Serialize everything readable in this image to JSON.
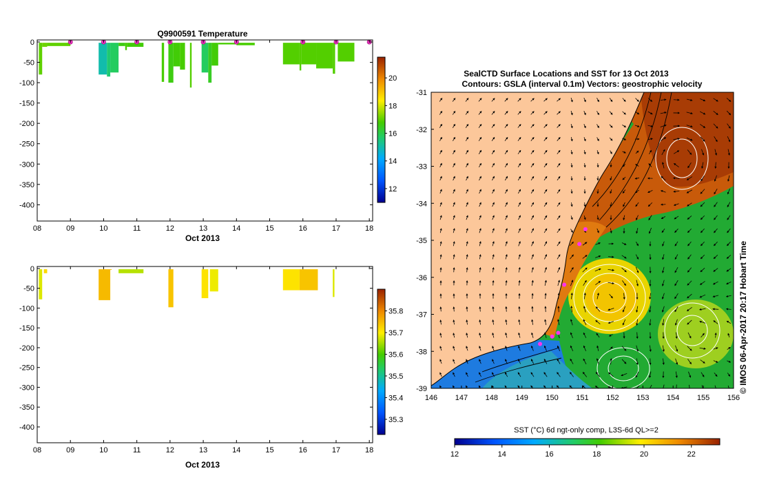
{
  "chart_data": [
    {
      "type": "heatmap",
      "title": "Q9900591  Temperature",
      "xlabel": "Oct 2013",
      "ylabel": "",
      "x_ticks": [
        "08",
        "09",
        "10",
        "11",
        "12",
        "13",
        "14",
        "15",
        "16",
        "17",
        "18"
      ],
      "xlim": [
        8,
        18.1
      ],
      "y_ticks": [
        0,
        -50,
        -100,
        -150,
        -200,
        -250,
        -300,
        -350,
        -400
      ],
      "ylim": [
        -440,
        5
      ],
      "profile_markers_day": [
        9,
        10,
        11,
        12,
        13,
        14,
        16,
        17,
        18
      ],
      "profiles": [
        {
          "start": 8.05,
          "end": 8.15,
          "depth": 80,
          "value": 17.0
        },
        {
          "start": 8.15,
          "end": 8.3,
          "depth": 12,
          "value": 17.1
        },
        {
          "start": 8.3,
          "end": 9.0,
          "depth": 10,
          "value": 17.0
        },
        {
          "start": 9.85,
          "end": 10.1,
          "depth": 80,
          "value": 15.0
        },
        {
          "start": 10.1,
          "end": 10.2,
          "depth": 85,
          "value": 15.6
        },
        {
          "start": 10.2,
          "end": 10.45,
          "depth": 75,
          "value": 15.8
        },
        {
          "start": 10.45,
          "end": 10.65,
          "depth": 10,
          "value": 16.6
        },
        {
          "start": 10.65,
          "end": 10.7,
          "depth": 20,
          "value": 16.8
        },
        {
          "start": 10.7,
          "end": 11.2,
          "depth": 12,
          "value": 16.7
        },
        {
          "start": 11.75,
          "end": 11.82,
          "depth": 98,
          "value": 16.8
        },
        {
          "start": 11.95,
          "end": 12.1,
          "depth": 100,
          "value": 16.6
        },
        {
          "start": 12.1,
          "end": 12.3,
          "depth": 60,
          "value": 16.7
        },
        {
          "start": 12.3,
          "end": 12.45,
          "depth": 68,
          "value": 16.8
        },
        {
          "start": 12.6,
          "end": 12.65,
          "depth": 112,
          "value": 16.9
        },
        {
          "start": 12.95,
          "end": 13.15,
          "depth": 75,
          "value": 15.8
        },
        {
          "start": 13.15,
          "end": 13.25,
          "depth": 100,
          "value": 16.4
        },
        {
          "start": 13.25,
          "end": 13.45,
          "depth": 58,
          "value": 16.7
        },
        {
          "start": 13.45,
          "end": 14.0,
          "depth": 6,
          "value": 16.8
        },
        {
          "start": 14.0,
          "end": 14.55,
          "depth": 8,
          "value": 16.8
        },
        {
          "start": 15.4,
          "end": 15.9,
          "depth": 55,
          "value": 16.9
        },
        {
          "start": 15.9,
          "end": 15.95,
          "depth": 70,
          "value": 16.9
        },
        {
          "start": 15.95,
          "end": 16.4,
          "depth": 55,
          "value": 16.9
        },
        {
          "start": 16.4,
          "end": 16.9,
          "depth": 65,
          "value": 16.9
        },
        {
          "start": 16.9,
          "end": 16.97,
          "depth": 78,
          "value": 16.9
        },
        {
          "start": 17.05,
          "end": 17.55,
          "depth": 48,
          "value": 16.9
        }
      ],
      "colorbar": {
        "min": 11,
        "max": 21.5,
        "ticks": [
          12,
          14,
          16,
          18,
          20
        ]
      }
    },
    {
      "type": "heatmap",
      "title": "",
      "xlabel": "Oct 2013",
      "ylabel": "",
      "x_ticks": [
        "08",
        "09",
        "10",
        "11",
        "12",
        "13",
        "14",
        "15",
        "16",
        "17",
        "18"
      ],
      "xlim": [
        8,
        18.1
      ],
      "y_ticks": [
        0,
        -50,
        -100,
        -150,
        -200,
        -250,
        -300,
        -350,
        -400
      ],
      "ylim": [
        -440,
        5
      ],
      "profiles": [
        {
          "start": 8.05,
          "end": 8.15,
          "depth": 78,
          "value": 35.68
        },
        {
          "start": 8.2,
          "end": 8.3,
          "depth": 12,
          "value": 35.72
        },
        {
          "start": 9.85,
          "end": 10.2,
          "depth": 80,
          "value": 35.75
        },
        {
          "start": 10.2,
          "end": 10.2,
          "depth": 0,
          "value": 35.75
        },
        {
          "start": 10.45,
          "end": 11.2,
          "depth": 12,
          "value": 35.66
        },
        {
          "start": 11.95,
          "end": 12.1,
          "depth": 98,
          "value": 35.74
        },
        {
          "start": 12.95,
          "end": 13.15,
          "depth": 75,
          "value": 35.71
        },
        {
          "start": 13.2,
          "end": 13.45,
          "depth": 58,
          "value": 35.69
        },
        {
          "start": 15.4,
          "end": 15.9,
          "depth": 55,
          "value": 35.71
        },
        {
          "start": 15.9,
          "end": 16.45,
          "depth": 55,
          "value": 35.74
        },
        {
          "start": 16.9,
          "end": 16.95,
          "depth": 72,
          "value": 35.68
        }
      ],
      "colorbar": {
        "min": 35.23,
        "max": 35.9,
        "ticks": [
          35.3,
          35.4,
          35.5,
          35.6,
          35.7,
          35.8
        ]
      }
    },
    {
      "type": "heatmap",
      "title": "SealCTD Surface Locations and SST for 13 Oct 2013",
      "subtitle": "Contours: GSLA (interval 0.1m) Vectors: geostrophic velocity",
      "xlabel": "",
      "ylabel": "",
      "x_ticks": [
        146,
        147,
        148,
        149,
        150,
        151,
        152,
        153,
        154,
        155,
        156
      ],
      "y_ticks": [
        -31,
        -32,
        -33,
        -34,
        -35,
        -36,
        -37,
        -38,
        -39
      ],
      "xlim": [
        146,
        156
      ],
      "ylim": [
        -39,
        -31
      ],
      "annotation": "© IMOS 06-Apr-2017 20:17 Hobart Time",
      "colorbar_label": "SST (°C) 6d ngt-only comp, L3S-6d QL>=2",
      "colorbar": {
        "min": 12,
        "max": 23.2,
        "ticks": [
          12,
          14,
          16,
          18,
          20,
          22
        ]
      },
      "seal_positions": [
        [
          151.1,
          -34.7
        ],
        [
          150.9,
          -35.1
        ],
        [
          150.4,
          -36.2
        ],
        [
          150.2,
          -37.5
        ],
        [
          150.0,
          -37.6
        ],
        [
          149.6,
          -37.8
        ]
      ]
    }
  ]
}
